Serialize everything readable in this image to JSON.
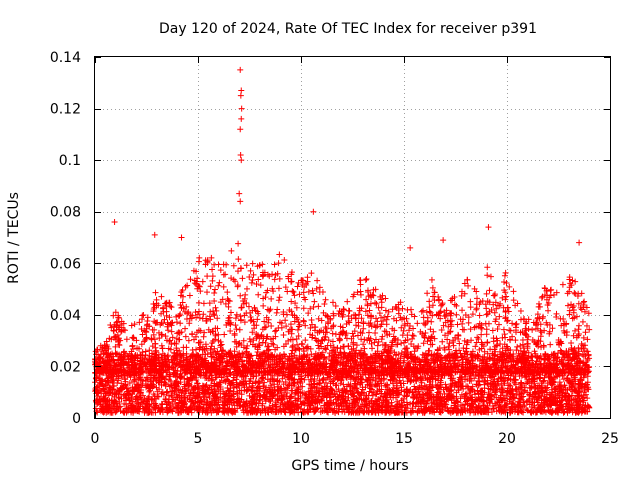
{
  "chart_data": {
    "type": "scatter",
    "title": "Day 120 of 2024, Rate Of TEC Index for receiver p391",
    "xlabel": "GPS time / hours",
    "ylabel": "ROTI / TECUs",
    "xlim": [
      0,
      25
    ],
    "ylim": [
      0,
      0.14
    ],
    "xticks": [
      0,
      5,
      10,
      15,
      20,
      25
    ],
    "yticks": [
      0,
      0.02,
      0.04,
      0.06,
      0.08,
      0.1,
      0.12,
      0.14
    ],
    "xtick_labels": [
      "0",
      "5",
      "10",
      "15",
      "20",
      "25"
    ],
    "ytick_labels": [
      "0",
      "0.02",
      "0.04",
      "0.06",
      "0.08",
      "0.1",
      "0.12",
      "0.14"
    ],
    "grid": true,
    "marker": "+",
    "color": "#ff0000",
    "series": [
      {
        "name": "ROTI",
        "notable_points": [
          {
            "x": 7.05,
            "y": 0.135
          },
          {
            "x": 7.1,
            "y": 0.127
          },
          {
            "x": 7.08,
            "y": 0.125
          },
          {
            "x": 7.12,
            "y": 0.12
          },
          {
            "x": 7.1,
            "y": 0.116
          },
          {
            "x": 7.05,
            "y": 0.112
          },
          {
            "x": 7.07,
            "y": 0.102
          },
          {
            "x": 7.1,
            "y": 0.1
          },
          {
            "x": 7.0,
            "y": 0.087
          },
          {
            "x": 7.05,
            "y": 0.084
          },
          {
            "x": 0.95,
            "y": 0.076
          },
          {
            "x": 10.6,
            "y": 0.08
          },
          {
            "x": 19.1,
            "y": 0.074
          },
          {
            "x": 23.5,
            "y": 0.068
          },
          {
            "x": 2.9,
            "y": 0.071
          },
          {
            "x": 4.2,
            "y": 0.07
          },
          {
            "x": 16.9,
            "y": 0.069
          },
          {
            "x": 15.3,
            "y": 0.066
          }
        ],
        "envelope": [
          {
            "x": 0,
            "y": 0.026
          },
          {
            "x": 0.5,
            "y": 0.03
          },
          {
            "x": 1,
            "y": 0.045
          },
          {
            "x": 1.5,
            "y": 0.035
          },
          {
            "x": 2,
            "y": 0.038
          },
          {
            "x": 2.5,
            "y": 0.042
          },
          {
            "x": 3,
            "y": 0.05
          },
          {
            "x": 3.5,
            "y": 0.045
          },
          {
            "x": 4,
            "y": 0.05
          },
          {
            "x": 4.5,
            "y": 0.055
          },
          {
            "x": 5,
            "y": 0.062
          },
          {
            "x": 5.5,
            "y": 0.064
          },
          {
            "x": 6,
            "y": 0.06
          },
          {
            "x": 6.5,
            "y": 0.065
          },
          {
            "x": 7,
            "y": 0.07
          },
          {
            "x": 7.5,
            "y": 0.065
          },
          {
            "x": 8,
            "y": 0.06
          },
          {
            "x": 8.5,
            "y": 0.062
          },
          {
            "x": 9,
            "y": 0.064
          },
          {
            "x": 9.5,
            "y": 0.058
          },
          {
            "x": 10,
            "y": 0.055
          },
          {
            "x": 10.5,
            "y": 0.06
          },
          {
            "x": 11,
            "y": 0.05
          },
          {
            "x": 11.5,
            "y": 0.045
          },
          {
            "x": 12,
            "y": 0.044
          },
          {
            "x": 12.5,
            "y": 0.05
          },
          {
            "x": 13,
            "y": 0.055
          },
          {
            "x": 13.5,
            "y": 0.058
          },
          {
            "x": 14,
            "y": 0.048
          },
          {
            "x": 14.5,
            "y": 0.045
          },
          {
            "x": 15,
            "y": 0.05
          },
          {
            "x": 15.5,
            "y": 0.04
          },
          {
            "x": 16,
            "y": 0.05
          },
          {
            "x": 16.5,
            "y": 0.055
          },
          {
            "x": 17,
            "y": 0.045
          },
          {
            "x": 17.5,
            "y": 0.048
          },
          {
            "x": 18,
            "y": 0.055
          },
          {
            "x": 18.5,
            "y": 0.05
          },
          {
            "x": 19,
            "y": 0.06
          },
          {
            "x": 19.5,
            "y": 0.05
          },
          {
            "x": 20,
            "y": 0.058
          },
          {
            "x": 20.5,
            "y": 0.045
          },
          {
            "x": 21,
            "y": 0.04
          },
          {
            "x": 21.5,
            "y": 0.045
          },
          {
            "x": 22,
            "y": 0.055
          },
          {
            "x": 22.5,
            "y": 0.05
          },
          {
            "x": 23,
            "y": 0.055
          },
          {
            "x": 23.5,
            "y": 0.06
          },
          {
            "x": 24,
            "y": 0.04
          }
        ],
        "dense_band": {
          "y_min": 0.002,
          "y_max": 0.025,
          "x_start": 0,
          "x_end": 24
        }
      }
    ]
  }
}
